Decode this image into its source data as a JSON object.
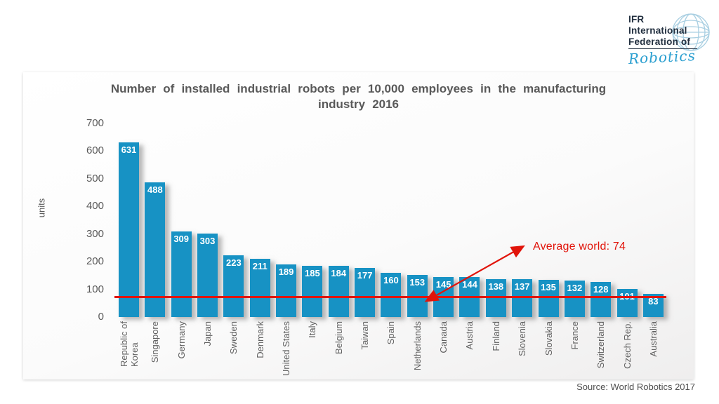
{
  "logo": {
    "line1": "IFR",
    "line2": "International",
    "line3": "Federation of",
    "brand": "Robotics",
    "text_color": "#222f3f",
    "brand_color": "#2b9fd0",
    "globe_color": "#a9cfe2"
  },
  "chart_data": {
    "type": "bar",
    "title": "Number of installed industrial robots per 10,000 employees in the manufacturing industry 2016",
    "xlabel": "",
    "ylabel": "units",
    "ylim": [
      0,
      700
    ],
    "yticks": [
      0,
      100,
      200,
      300,
      400,
      500,
      600,
      700
    ],
    "grid": false,
    "legend": false,
    "categories": [
      "Republic of\nKorea",
      "Singapore",
      "Germany",
      "Japan",
      "Sweden",
      "Denmark",
      "United States",
      "Italy",
      "Belgium",
      "Taiwan",
      "Spain",
      "Netherlands",
      "Canada",
      "Austria",
      "Finland",
      "Slovenia",
      "Slovakia",
      "France",
      "Switzerland",
      "Czech Rep.",
      "Australia"
    ],
    "values": [
      631,
      488,
      309,
      303,
      223,
      211,
      189,
      185,
      184,
      177,
      160,
      153,
      145,
      144,
      138,
      137,
      135,
      132,
      128,
      101,
      83
    ],
    "average_annotation": {
      "label": "Average world: 74",
      "value": 74
    },
    "bar_color": "#1792c4",
    "line_color": "#e1140a",
    "title_color": "#595959"
  },
  "source": "Source: World Robotics 2017"
}
